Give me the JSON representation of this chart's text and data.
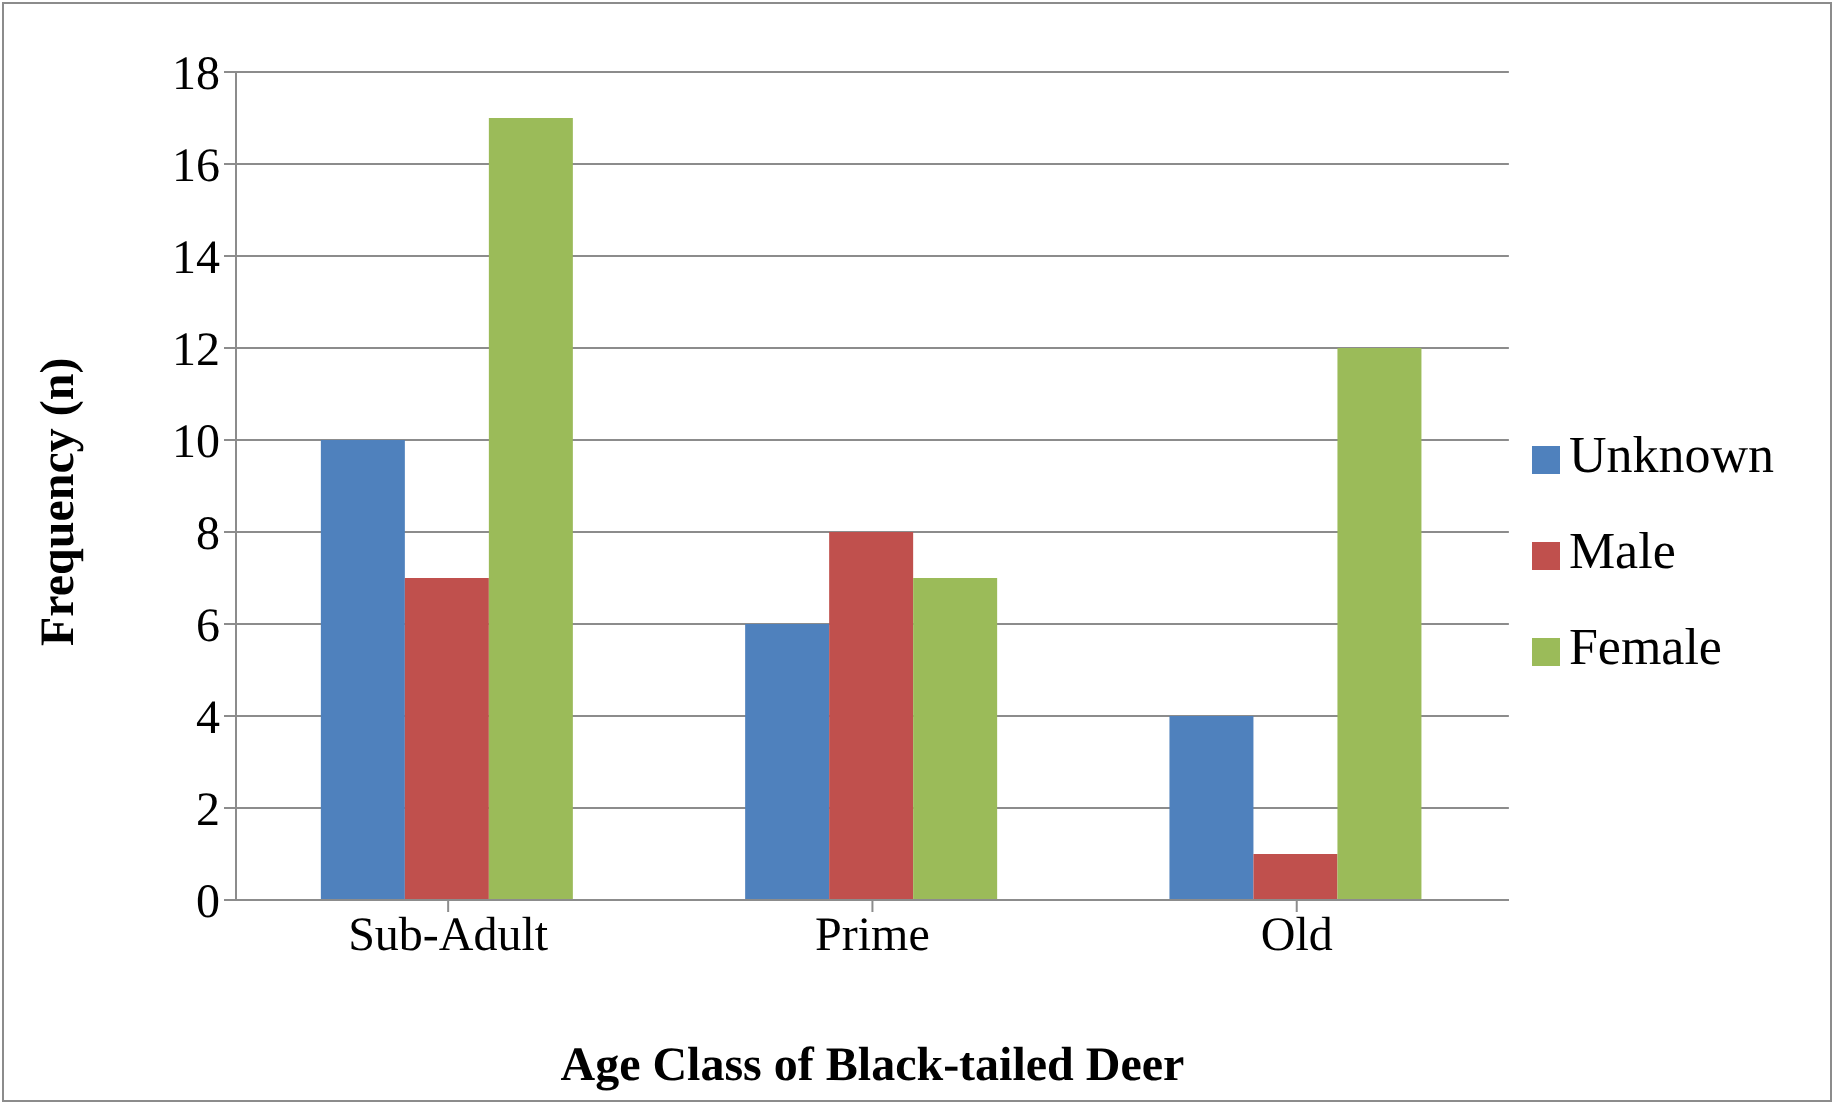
{
  "chart_data": {
    "type": "bar",
    "xlabel": "Age Class of Black-tailed Deer",
    "ylabel": "Frequency (n)",
    "categories": [
      "Sub-Adult",
      "Prime",
      "Old"
    ],
    "series": [
      {
        "name": "Unknown",
        "color": "#4f81bd",
        "values": [
          10,
          6,
          4
        ]
      },
      {
        "name": "Male",
        "color": "#c0504d",
        "values": [
          7,
          8,
          1
        ]
      },
      {
        "name": "Female",
        "color": "#9bbb59",
        "values": [
          17,
          7,
          12
        ]
      }
    ],
    "ylim": [
      0,
      18
    ],
    "yticks": [
      0,
      2,
      4,
      6,
      8,
      10,
      12,
      14,
      16,
      18
    ],
    "grid": "y",
    "legend": "right"
  }
}
